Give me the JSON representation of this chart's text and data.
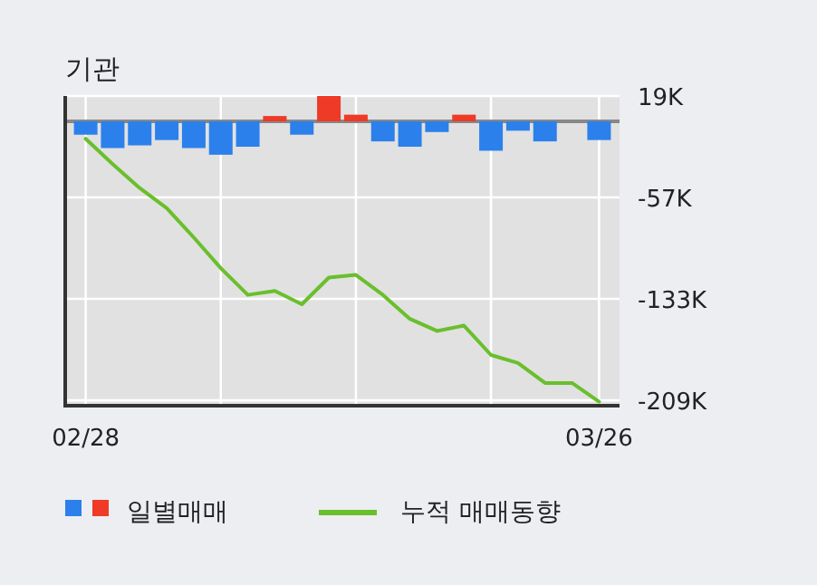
{
  "chart_data": {
    "type": "bar",
    "title": "기관",
    "categories": [
      "02/28",
      null,
      null,
      null,
      null,
      null,
      null,
      null,
      null,
      null,
      null,
      null,
      null,
      null,
      null,
      null,
      null,
      null,
      null,
      "03/26"
    ],
    "series": [
      {
        "name": "일별매매",
        "colors": [
          "#2b80ec",
          "#2b80ec",
          "#2b80ec",
          "#2b80ec",
          "#2b80ec",
          "#2b80ec",
          "#2b80ec",
          "#ee3a26",
          "#2b80ec",
          "#ee3a26",
          "#ee3a26",
          "#2b80ec",
          "#2b80ec",
          "#2b80ec",
          "#ee3a26",
          "#2b80ec",
          "#2b80ec",
          "#2b80ec",
          "#2b80ec",
          "#2b80ec"
        ],
        "values": [
          -10,
          -20,
          -18,
          -14,
          -20,
          -25,
          -19,
          4,
          -10,
          19,
          5,
          -15,
          -19,
          -8,
          5,
          -22,
          -7,
          -15,
          0,
          -14
        ]
      },
      {
        "name": "누적 매매동향",
        "type": "line",
        "color": "#6abf2c",
        "values": [
          -13,
          -32,
          -50,
          -65,
          -87,
          -110,
          -130,
          -127,
          -137,
          -117,
          -115,
          -130,
          -148,
          -157,
          -153,
          -175,
          -181,
          -196,
          -196,
          -210
        ]
      }
    ],
    "ylim": [
      -213,
      19
    ],
    "yticks": [
      {
        "value": 19,
        "label": "19K"
      },
      {
        "value": -57,
        "label": "-57K"
      },
      {
        "value": -133,
        "label": "-133K"
      },
      {
        "value": -209,
        "label": "-209K"
      }
    ],
    "grid": true,
    "legend": "bottom"
  }
}
